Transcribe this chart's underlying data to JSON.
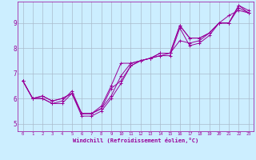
{
  "xlabel": "Windchill (Refroidissement éolien,°C)",
  "background_color": "#cceeff",
  "grid_color": "#aabbcc",
  "line_color": "#990099",
  "xlim": [
    -0.5,
    23.5
  ],
  "ylim": [
    4.7,
    9.85
  ],
  "xticks": [
    0,
    1,
    2,
    3,
    4,
    5,
    6,
    7,
    8,
    9,
    10,
    11,
    12,
    13,
    14,
    15,
    16,
    17,
    18,
    19,
    20,
    21,
    22,
    23
  ],
  "yticks": [
    5,
    6,
    7,
    8,
    9
  ],
  "series": [
    [
      6.7,
      6.0,
      6.0,
      5.8,
      5.8,
      6.2,
      5.3,
      5.3,
      5.5,
      6.0,
      6.6,
      7.3,
      7.5,
      7.6,
      7.7,
      7.7,
      8.8,
      8.1,
      8.2,
      8.5,
      9.0,
      9.3,
      9.5,
      9.4
    ],
    [
      6.7,
      6.0,
      6.0,
      5.8,
      5.9,
      6.3,
      5.4,
      5.4,
      5.6,
      6.1,
      6.9,
      7.4,
      7.5,
      7.6,
      7.7,
      7.8,
      8.3,
      8.2,
      8.3,
      8.6,
      9.0,
      9.0,
      9.6,
      9.4
    ],
    [
      6.7,
      6.0,
      6.1,
      5.9,
      6.0,
      6.2,
      5.4,
      5.4,
      5.6,
      6.4,
      6.7,
      7.3,
      7.5,
      7.6,
      7.8,
      7.8,
      8.9,
      8.4,
      8.4,
      8.6,
      9.0,
      9.0,
      9.7,
      9.4
    ],
    [
      6.7,
      6.0,
      6.1,
      5.9,
      6.0,
      6.2,
      5.4,
      5.4,
      5.7,
      6.5,
      7.4,
      7.4,
      7.5,
      7.6,
      7.8,
      7.8,
      8.9,
      8.4,
      8.4,
      8.6,
      9.0,
      9.0,
      9.7,
      9.5
    ]
  ]
}
